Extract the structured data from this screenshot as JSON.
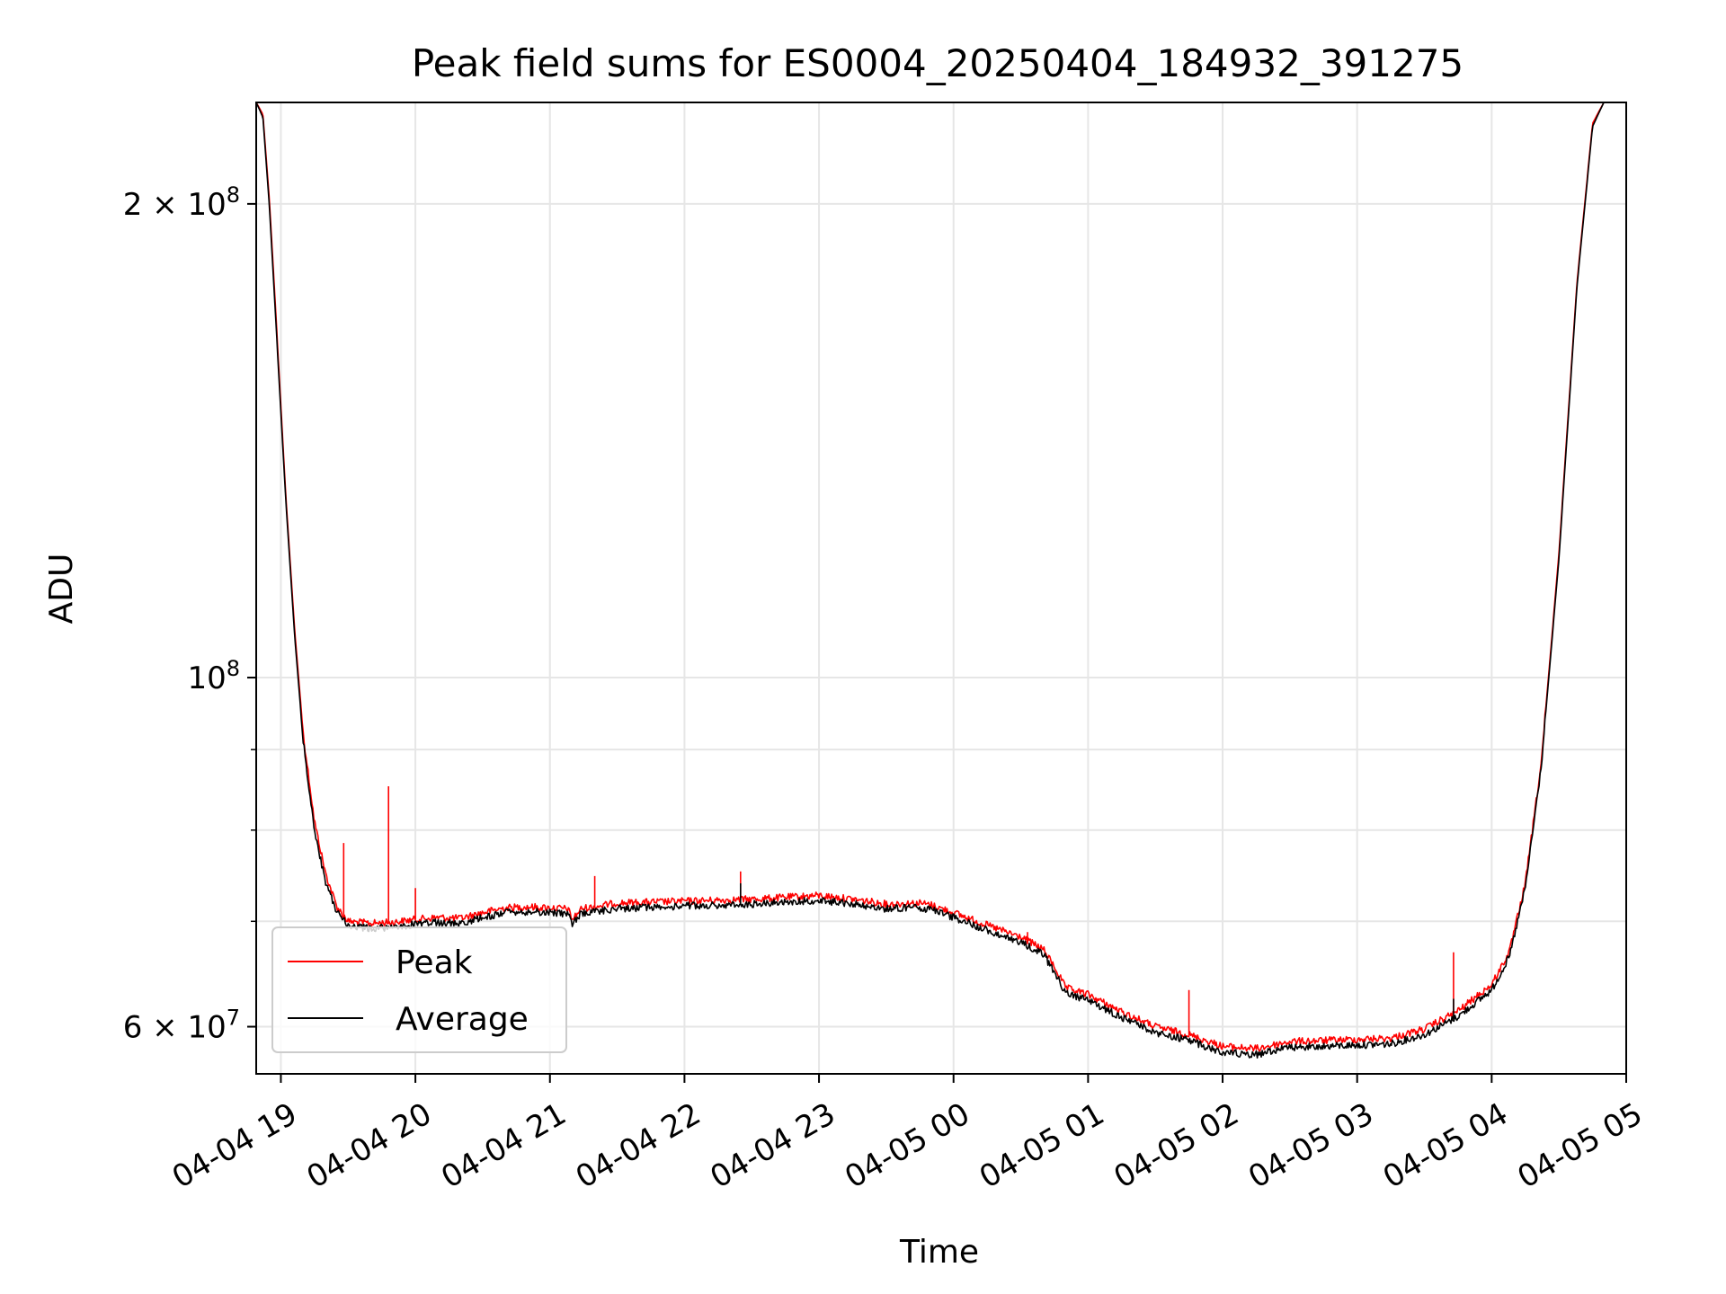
{
  "chart_data": {
    "type": "line",
    "title": "Peak field sums for ES0004_20250404_184932_391275",
    "xlabel": "Time",
    "ylabel": "ADU",
    "x_scale": "time",
    "y_scale": "log",
    "xlim": [
      "2025-04-04 18:49",
      "2025-04-05 05:00"
    ],
    "ylim": [
      56000000,
      232000000
    ],
    "grid": true,
    "legend_position": "lower-left",
    "x_ticks": [
      {
        "value": "2025-04-04 19:00",
        "label": "04-04 19"
      },
      {
        "value": "2025-04-04 20:00",
        "label": "04-04 20"
      },
      {
        "value": "2025-04-04 21:00",
        "label": "04-04 21"
      },
      {
        "value": "2025-04-04 22:00",
        "label": "04-04 22"
      },
      {
        "value": "2025-04-04 23:00",
        "label": "04-04 23"
      },
      {
        "value": "2025-04-05 00:00",
        "label": "04-05 00"
      },
      {
        "value": "2025-04-05 01:00",
        "label": "04-05 01"
      },
      {
        "value": "2025-04-05 02:00",
        "label": "04-05 02"
      },
      {
        "value": "2025-04-05 03:00",
        "label": "04-05 03"
      },
      {
        "value": "2025-04-05 04:00",
        "label": "04-05 04"
      },
      {
        "value": "2025-04-05 05:00",
        "label": "04-05 05"
      }
    ],
    "y_ticks": [
      {
        "value": 60000000,
        "base": "6 × 10",
        "exp": "7"
      },
      {
        "value": 100000000,
        "base": "10",
        "exp": "8"
      },
      {
        "value": 200000000,
        "base": "2 × 10",
        "exp": "8"
      }
    ],
    "y_minor_ticks": [
      70000000,
      80000000,
      90000000
    ],
    "series": [
      {
        "name": "Peak",
        "color": "#ff0000",
        "points": [
          [
            "2025-04-04 18:49",
            232000000
          ],
          [
            "2025-04-04 18:52",
            228000000
          ],
          [
            "2025-04-04 18:55",
            200000000
          ],
          [
            "2025-04-04 18:58",
            168000000
          ],
          [
            "2025-04-04 19:02",
            132000000
          ],
          [
            "2025-04-04 19:06",
            108000000
          ],
          [
            "2025-04-04 19:10",
            92000000
          ],
          [
            "2025-04-04 19:15",
            81000000
          ],
          [
            "2025-04-04 19:20",
            75000000
          ],
          [
            "2025-04-04 19:25",
            71500000
          ],
          [
            "2025-04-04 19:30",
            70000000
          ],
          [
            "2025-04-04 19:40",
            69800000
          ],
          [
            "2025-04-04 19:50",
            69900000
          ],
          [
            "2025-04-04 20:00",
            70200000
          ],
          [
            "2025-04-04 20:10",
            70400000
          ],
          [
            "2025-04-04 20:20",
            70300000
          ],
          [
            "2025-04-04 20:30",
            70900000
          ],
          [
            "2025-04-04 20:40",
            71400000
          ],
          [
            "2025-04-04 20:50",
            71500000
          ],
          [
            "2025-04-04 21:00",
            71400000
          ],
          [
            "2025-04-04 21:08",
            71300000
          ],
          [
            "2025-04-04 21:10",
            70200000
          ],
          [
            "2025-04-04 21:14",
            71300000
          ],
          [
            "2025-04-04 21:30",
            71900000
          ],
          [
            "2025-04-04 22:00",
            72100000
          ],
          [
            "2025-04-04 22:30",
            72300000
          ],
          [
            "2025-04-04 22:45",
            72500000
          ],
          [
            "2025-04-04 23:00",
            72700000
          ],
          [
            "2025-04-04 23:15",
            72300000
          ],
          [
            "2025-04-04 23:30",
            71800000
          ],
          [
            "2025-04-04 23:45",
            71900000
          ],
          [
            "2025-04-04 23:50",
            71700000
          ],
          [
            "2025-04-05 00:00",
            70900000
          ],
          [
            "2025-04-05 00:15",
            69600000
          ],
          [
            "2025-04-05 00:30",
            68400000
          ],
          [
            "2025-04-05 00:40",
            67200000
          ],
          [
            "2025-04-05 00:45",
            65500000
          ],
          [
            "2025-04-05 00:50",
            63500000
          ],
          [
            "2025-04-05 01:00",
            62900000
          ],
          [
            "2025-04-05 01:15",
            61300000
          ],
          [
            "2025-04-05 01:30",
            60000000
          ],
          [
            "2025-04-05 01:45",
            59300000
          ],
          [
            "2025-04-05 02:00",
            58300000
          ],
          [
            "2025-04-05 02:15",
            58100000
          ],
          [
            "2025-04-05 02:30",
            58700000
          ],
          [
            "2025-04-05 02:45",
            58800000
          ],
          [
            "2025-04-05 03:00",
            58900000
          ],
          [
            "2025-04-05 03:15",
            59000000
          ],
          [
            "2025-04-05 03:30",
            59800000
          ],
          [
            "2025-04-05 03:45",
            61400000
          ],
          [
            "2025-04-05 04:00",
            63800000
          ],
          [
            "2025-04-05 04:08",
            67000000
          ],
          [
            "2025-04-05 04:15",
            74000000
          ],
          [
            "2025-04-05 04:22",
            88000000
          ],
          [
            "2025-04-05 04:30",
            120000000
          ],
          [
            "2025-04-05 04:38",
            178000000
          ],
          [
            "2025-04-05 04:45",
            225000000
          ],
          [
            "2025-04-05 04:50",
            232000000
          ],
          [
            "2025-04-05 05:00",
            232000000
          ]
        ],
        "spikes": [
          [
            "2025-04-04 19:28",
            78500000
          ],
          [
            "2025-04-04 19:48",
            85300000
          ],
          [
            "2025-04-04 20:00",
            73500000
          ],
          [
            "2025-04-04 21:20",
            74800000
          ],
          [
            "2025-04-04 22:25",
            75300000
          ],
          [
            "2025-04-05 00:33",
            68900000
          ],
          [
            "2025-04-05 01:45",
            63300000
          ],
          [
            "2025-04-05 03:43",
            66900000
          ]
        ]
      },
      {
        "name": "Average",
        "color": "#000000",
        "points": [
          [
            "2025-04-04 18:49",
            232000000
          ],
          [
            "2025-04-04 18:52",
            227000000
          ],
          [
            "2025-04-04 18:55",
            198000000
          ],
          [
            "2025-04-04 18:58",
            166000000
          ],
          [
            "2025-04-04 19:02",
            131000000
          ],
          [
            "2025-04-04 19:06",
            107000000
          ],
          [
            "2025-04-04 19:10",
            91000000
          ],
          [
            "2025-04-04 19:15",
            80000000
          ],
          [
            "2025-04-04 19:20",
            74000000
          ],
          [
            "2025-04-04 19:25",
            71000000
          ],
          [
            "2025-04-04 19:30",
            69500000
          ],
          [
            "2025-04-04 19:40",
            69300000
          ],
          [
            "2025-04-04 19:50",
            69400000
          ],
          [
            "2025-04-04 20:00",
            69700000
          ],
          [
            "2025-04-04 20:10",
            69900000
          ],
          [
            "2025-04-04 20:20",
            69800000
          ],
          [
            "2025-04-04 20:30",
            70400000
          ],
          [
            "2025-04-04 20:40",
            70900000
          ],
          [
            "2025-04-04 20:50",
            71000000
          ],
          [
            "2025-04-04 21:00",
            70900000
          ],
          [
            "2025-04-04 21:08",
            70800000
          ],
          [
            "2025-04-04 21:10",
            69800000
          ],
          [
            "2025-04-04 21:14",
            70800000
          ],
          [
            "2025-04-04 21:30",
            71300000
          ],
          [
            "2025-04-04 22:00",
            71600000
          ],
          [
            "2025-04-04 22:30",
            71800000
          ],
          [
            "2025-04-04 22:45",
            72000000
          ],
          [
            "2025-04-04 23:00",
            72200000
          ],
          [
            "2025-04-04 23:15",
            71800000
          ],
          [
            "2025-04-04 23:30",
            71300000
          ],
          [
            "2025-04-04 23:45",
            71400000
          ],
          [
            "2025-04-04 23:50",
            71200000
          ],
          [
            "2025-04-05 00:00",
            70400000
          ],
          [
            "2025-04-05 00:15",
            69100000
          ],
          [
            "2025-04-05 00:30",
            67900000
          ],
          [
            "2025-04-05 00:40",
            66700000
          ],
          [
            "2025-04-05 00:45",
            65000000
          ],
          [
            "2025-04-05 00:50",
            63000000
          ],
          [
            "2025-04-05 01:00",
            62400000
          ],
          [
            "2025-04-05 01:15",
            60800000
          ],
          [
            "2025-04-05 01:30",
            59500000
          ],
          [
            "2025-04-05 01:45",
            58800000
          ],
          [
            "2025-04-05 02:00",
            57800000
          ],
          [
            "2025-04-05 02:15",
            57600000
          ],
          [
            "2025-04-05 02:30",
            58200000
          ],
          [
            "2025-04-05 02:45",
            58300000
          ],
          [
            "2025-04-05 03:00",
            58400000
          ],
          [
            "2025-04-05 03:15",
            58500000
          ],
          [
            "2025-04-05 03:30",
            59300000
          ],
          [
            "2025-04-05 03:45",
            60900000
          ],
          [
            "2025-04-05 04:00",
            63300000
          ],
          [
            "2025-04-05 04:08",
            66500000
          ],
          [
            "2025-04-05 04:15",
            73500000
          ],
          [
            "2025-04-05 04:22",
            87500000
          ],
          [
            "2025-04-05 04:30",
            119000000
          ],
          [
            "2025-04-05 04:38",
            177000000
          ],
          [
            "2025-04-05 04:45",
            224000000
          ],
          [
            "2025-04-05 04:50",
            232000000
          ],
          [
            "2025-04-05 05:00",
            232000000
          ]
        ],
        "spikes": [
          [
            "2025-04-04 22:25",
            74000000
          ],
          [
            "2025-04-05 03:43",
            62500000
          ]
        ]
      }
    ]
  }
}
